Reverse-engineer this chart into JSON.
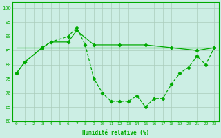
{
  "xlabel": "Humidité relative (%)",
  "background_color": "#cceee4",
  "grid_color": "#aaccbb",
  "line_color": "#00aa00",
  "xlim": [
    -0.5,
    23.5
  ],
  "ylim": [
    60,
    102
  ],
  "yticks": [
    60,
    65,
    70,
    75,
    80,
    85,
    90,
    95,
    100
  ],
  "xticks": [
    0,
    1,
    2,
    3,
    4,
    5,
    6,
    7,
    8,
    9,
    10,
    11,
    12,
    13,
    14,
    15,
    16,
    17,
    18,
    19,
    20,
    21,
    22,
    23
  ],
  "line1_x": [
    0,
    1,
    3,
    4,
    6,
    7,
    8,
    9,
    10,
    11,
    12,
    13,
    14,
    15,
    16,
    17,
    18,
    19,
    20,
    21,
    22,
    23
  ],
  "line1_y": [
    77,
    81,
    86,
    88,
    90,
    93,
    87,
    75,
    70,
    67,
    67,
    67,
    69,
    65,
    68,
    68,
    73,
    77,
    79,
    83,
    80,
    86
  ],
  "line2_x": [
    0,
    1,
    3,
    4,
    6,
    7,
    9,
    12,
    15,
    18,
    21,
    23
  ],
  "line2_y": [
    77,
    81,
    86,
    88,
    88,
    92,
    87,
    87,
    87,
    86,
    85,
    86
  ],
  "line3_x": [
    0,
    23
  ],
  "line3_y": [
    86,
    86
  ]
}
